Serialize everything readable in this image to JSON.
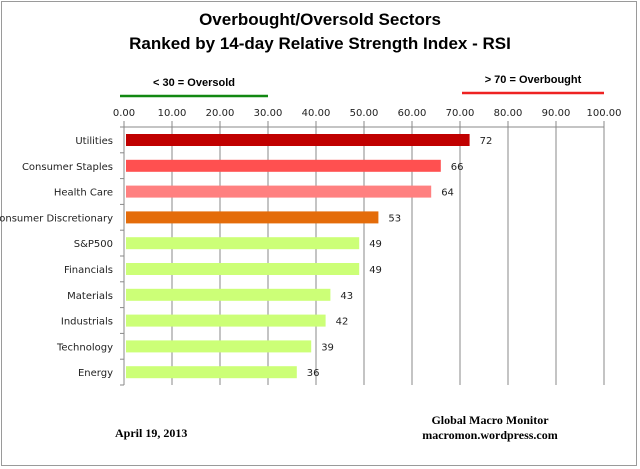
{
  "chart_data": {
    "type": "bar",
    "orientation": "horizontal",
    "title": "Overbought/Oversold Sectors",
    "subtitle": "Ranked by 14-day Relative Strength Index - RSI",
    "categories": [
      "Utilities",
      "Consumer Staples",
      "Health Care",
      "Consumer Discretionary",
      "S&P500",
      "Financials",
      "Materials",
      "Industrials",
      "Technology",
      "Energy"
    ],
    "values": [
      72,
      66,
      64,
      53,
      49,
      49,
      43,
      42,
      39,
      36
    ],
    "data_labels": [
      "72",
      "66",
      "64",
      "53",
      "49",
      "49",
      "43",
      "42",
      "39",
      "36"
    ],
    "bar_colors": [
      "#c00000",
      "#ff5050",
      "#ff8080",
      "#e46c0a",
      "#ccff77",
      "#ccff77",
      "#ccff77",
      "#ccff77",
      "#ccff77",
      "#ccff77"
    ],
    "xlim": [
      0,
      100
    ],
    "x_ticks": [
      "0.00",
      "10.00",
      "20.00",
      "30.00",
      "40.00",
      "50.00",
      "60.00",
      "70.00",
      "80.00",
      "90.00",
      "100.00"
    ],
    "x_tick_values": [
      0,
      10,
      20,
      30,
      40,
      50,
      60,
      70,
      80,
      90,
      100
    ],
    "axis_position": "top",
    "grid": true,
    "annotations": [
      {
        "text": "< 30 = Oversold",
        "range": [
          0,
          30
        ],
        "color": "#118811"
      },
      {
        "text": "> 70 = Overbought",
        "range": [
          70,
          100
        ],
        "color": "#ee2222"
      }
    ]
  },
  "footer": {
    "date": "April 19, 2013",
    "source_name": "Global Macro Monitor",
    "source_site": "macromon.wordpress.com"
  }
}
